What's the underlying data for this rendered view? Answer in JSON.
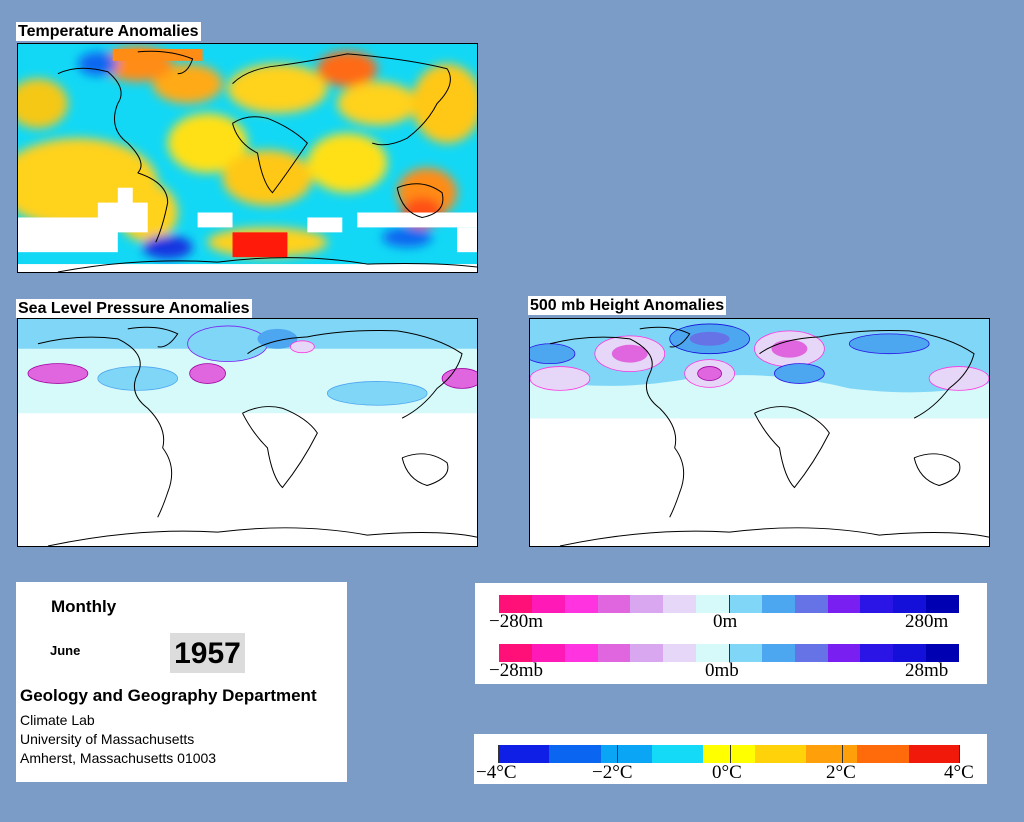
{
  "maps": {
    "temperature": {
      "title": "Temperature Anomalies"
    },
    "slp": {
      "title": "Sea Level Pressure Anomalies"
    },
    "height500": {
      "title": "500 mb Height Anomalies"
    }
  },
  "info": {
    "period": "Monthly",
    "month": "June",
    "year": "1957",
    "department": "Geology and Geography Department",
    "lab": "Climate Lab",
    "university": "University of Massachusetts",
    "address": "Amherst, Massachusetts 01003"
  },
  "legends": {
    "height": {
      "min": "−280m",
      "mid": "0m",
      "max": "280m"
    },
    "pressure": {
      "min": "−28mb",
      "mid": "0mb",
      "max": "28mb"
    },
    "temperature": {
      "labels": [
        "−4°C",
        "−2°C",
        "0°C",
        "2°C",
        "4°C"
      ]
    }
  },
  "colors": {
    "background": "#7b9cc6",
    "anomaly_scale": [
      "#ff0f78",
      "#ff1ab8",
      "#ff33e0",
      "#e066e0",
      "#d9a6f0",
      "#e6d6f7",
      "#d6fafa",
      "#80d6f7",
      "#4da6f0",
      "#6673e6",
      "#7a1ff2",
      "#2b14e6",
      "#140fd9",
      "#0000b3"
    ],
    "temperature_scale": [
      "#0f1fe6",
      "#0a66f0",
      "#0aa6f5",
      "#14d9f7",
      "#ffff00",
      "#ffd20a",
      "#ffa00a",
      "#ff6b0a",
      "#f0190a"
    ]
  }
}
